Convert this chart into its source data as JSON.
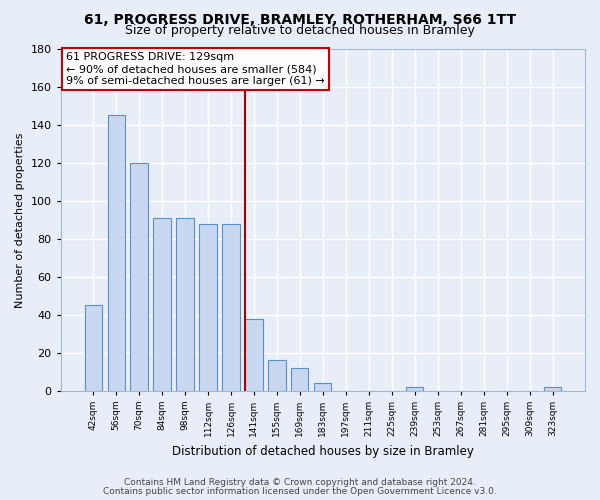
{
  "title": "61, PROGRESS DRIVE, BRAMLEY, ROTHERHAM, S66 1TT",
  "subtitle": "Size of property relative to detached houses in Bramley",
  "xlabel": "Distribution of detached houses by size in Bramley",
  "ylabel": "Number of detached properties",
  "bar_labels": [
    "42sqm",
    "56sqm",
    "70sqm",
    "84sqm",
    "98sqm",
    "112sqm",
    "126sqm",
    "141sqm",
    "155sqm",
    "169sqm",
    "183sqm",
    "197sqm",
    "211sqm",
    "225sqm",
    "239sqm",
    "253sqm",
    "267sqm",
    "281sqm",
    "295sqm",
    "309sqm",
    "323sqm"
  ],
  "bar_values": [
    45,
    145,
    120,
    91,
    91,
    88,
    88,
    38,
    16,
    12,
    4,
    0,
    0,
    0,
    2,
    0,
    0,
    0,
    0,
    0,
    2
  ],
  "bar_color": "#c8d8f0",
  "bar_edge_color": "#5b8fc7",
  "vline_index": 7,
  "vline_color": "#aa0000",
  "annotation_title": "61 PROGRESS DRIVE: 129sqm",
  "annotation_line1": "← 90% of detached houses are smaller (584)",
  "annotation_line2": "9% of semi-detached houses are larger (61) →",
  "annotation_box_color": "#ffffff",
  "annotation_box_edge": "#cc0000",
  "ylim": [
    0,
    180
  ],
  "yticks": [
    0,
    20,
    40,
    60,
    80,
    100,
    120,
    140,
    160,
    180
  ],
  "footnote1": "Contains HM Land Registry data © Crown copyright and database right 2024.",
  "footnote2": "Contains public sector information licensed under the Open Government Licence v3.0.",
  "bg_color": "#e8eef8",
  "plot_bg_color": "#e8eef8",
  "grid_color": "#ffffff"
}
